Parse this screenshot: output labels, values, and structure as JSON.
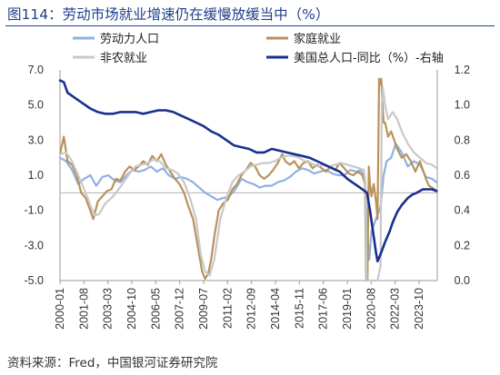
{
  "title": "图114：劳动市场就业增速仍在缓慢放缓当中（%）",
  "source": "资料来源：Fred，中国银河证券研究院",
  "chart_data": {
    "type": "line",
    "left_axis": {
      "ylim": [
        -5.0,
        7.0
      ],
      "ticks": [
        "7.0",
        "5.0",
        "3.0",
        "1.0",
        "-1.0",
        "-3.0",
        "-5.0"
      ]
    },
    "right_axis": {
      "ylim": [
        0.0,
        1.2
      ],
      "ticks": [
        "1.2",
        "1.0",
        "0.8",
        "0.6",
        "0.4",
        "0.2",
        "0.0"
      ]
    },
    "x_ticks": [
      "2000-01",
      "2001-08",
      "2003-03",
      "2004-10",
      "2006-05",
      "2007-12",
      "2009-07",
      "2011-02",
      "2012-09",
      "2014-04",
      "2015-11",
      "2017-06",
      "2019-01",
      "2020-08",
      "2022-03",
      "2023-10"
    ],
    "x_range": [
      2000.0,
      2024.95
    ],
    "legend": [
      {
        "label": "劳动力人口",
        "color": "#8fb0e2"
      },
      {
        "label": "家庭就业",
        "color": "#b8925a"
      },
      {
        "label": "非农就业",
        "color": "#c8c8c8"
      },
      {
        "label": "美国总人口-同比（%）-右轴",
        "color": "#1a2f8f"
      }
    ],
    "series": [
      {
        "name": "劳动力人口",
        "axis": "left",
        "color": "#8fb0e2",
        "x": [
          2000.0,
          2000.4,
          2000.8,
          2001.2,
          2001.6,
          2002.0,
          2002.4,
          2002.8,
          2003.2,
          2003.6,
          2004.0,
          2004.4,
          2004.8,
          2005.2,
          2005.6,
          2006.0,
          2006.4,
          2006.8,
          2007.2,
          2007.6,
          2008.0,
          2008.4,
          2008.8,
          2009.2,
          2009.6,
          2010.0,
          2010.4,
          2010.8,
          2011.2,
          2011.6,
          2012.0,
          2012.4,
          2012.8,
          2013.2,
          2013.6,
          2014.0,
          2014.4,
          2014.8,
          2015.2,
          2015.6,
          2016.0,
          2016.4,
          2016.8,
          2017.2,
          2017.6,
          2018.0,
          2018.4,
          2018.8,
          2019.2,
          2019.6,
          2019.9,
          2020.17,
          2020.3,
          2020.45,
          2020.6,
          2020.9,
          2021.2,
          2021.4,
          2021.6,
          2021.9,
          2022.2,
          2022.6,
          2023.0,
          2023.4,
          2023.8,
          2024.2,
          2024.6,
          2024.9
        ],
        "y": [
          2.0,
          1.8,
          1.3,
          0.5,
          0.8,
          1.0,
          0.4,
          0.9,
          1.0,
          0.7,
          0.6,
          1.0,
          1.3,
          1.2,
          1.3,
          1.5,
          1.2,
          1.4,
          1.0,
          0.8,
          0.9,
          0.8,
          0.6,
          0.3,
          0.0,
          -0.2,
          -0.4,
          -0.3,
          -0.2,
          0.2,
          0.8,
          0.6,
          0.5,
          0.3,
          0.4,
          0.4,
          0.6,
          0.7,
          0.9,
          1.2,
          1.4,
          1.3,
          1.1,
          1.2,
          1.3,
          1.1,
          1.0,
          1.0,
          1.3,
          1.2,
          1.3,
          0.8,
          -2.0,
          -3.8,
          -2.2,
          -1.5,
          -0.8,
          1.0,
          1.8,
          2.0,
          2.8,
          2.3,
          1.5,
          1.8,
          1.6,
          0.9,
          0.8,
          0.6
        ]
      },
      {
        "name": "家庭就业",
        "axis": "left",
        "color": "#b8925a",
        "x": [
          2000.0,
          2000.25,
          2000.5,
          2000.8,
          2001.1,
          2001.4,
          2001.7,
          2002.0,
          2002.2,
          2002.5,
          2002.8,
          2003.1,
          2003.4,
          2003.7,
          2004.0,
          2004.3,
          2004.6,
          2004.9,
          2005.2,
          2005.5,
          2005.8,
          2006.1,
          2006.4,
          2006.7,
          2007.0,
          2007.3,
          2007.6,
          2007.9,
          2008.2,
          2008.5,
          2008.8,
          2009.0,
          2009.2,
          2009.4,
          2009.6,
          2009.8,
          2010.0,
          2010.2,
          2010.5,
          2010.8,
          2011.1,
          2011.4,
          2011.7,
          2012.0,
          2012.3,
          2012.6,
          2012.9,
          2013.2,
          2013.5,
          2013.8,
          2014.1,
          2014.4,
          2014.7,
          2014.9,
          2015.2,
          2015.5,
          2015.8,
          2016.1,
          2016.4,
          2016.7,
          2017.0,
          2017.3,
          2017.6,
          2017.9,
          2018.2,
          2018.5,
          2018.8,
          2019.1,
          2019.4,
          2019.7,
          2020.0,
          2020.17,
          2020.25,
          2020.33,
          2020.42,
          2020.5,
          2020.6,
          2020.75,
          2020.9,
          2021.0,
          2021.1,
          2021.2,
          2021.25,
          2021.3,
          2021.4,
          2021.5,
          2021.7,
          2021.9,
          2022.1,
          2022.3,
          2022.6,
          2022.9,
          2023.2,
          2023.5,
          2023.8,
          2024.0,
          2024.2,
          2024.4,
          2024.6,
          2024.9
        ],
        "y": [
          2.2,
          3.2,
          1.8,
          1.6,
          1.0,
          0.0,
          -0.3,
          -1.0,
          -1.5,
          -0.5,
          -0.2,
          0.1,
          0.2,
          0.8,
          0.7,
          1.2,
          1.5,
          1.3,
          1.5,
          1.8,
          1.6,
          2.1,
          1.8,
          2.2,
          1.6,
          1.2,
          0.8,
          0.5,
          0.0,
          -0.8,
          -1.5,
          -2.5,
          -3.5,
          -4.5,
          -4.9,
          -4.6,
          -3.8,
          -2.5,
          -1.0,
          -0.6,
          -0.4,
          0.2,
          0.5,
          1.0,
          1.3,
          1.7,
          1.5,
          1.0,
          0.8,
          1.0,
          1.3,
          1.7,
          2.2,
          1.8,
          1.6,
          1.8,
          1.4,
          1.7,
          1.8,
          1.4,
          1.6,
          1.4,
          1.2,
          1.5,
          1.3,
          1.7,
          1.4,
          1.1,
          1.0,
          1.2,
          1.0,
          0.5,
          -5.0,
          -5.0,
          1.5,
          0.5,
          -0.2,
          0.5,
          -0.5,
          -1.5,
          6.5,
          6.2,
          6.5,
          5.5,
          4.0,
          4.0,
          3.2,
          3.5,
          3.0,
          2.5,
          2.0,
          2.2,
          1.8,
          1.2,
          1.8,
          1.3,
          0.8,
          0.4,
          0.3,
          0.1
        ]
      },
      {
        "name": "非农就业",
        "axis": "left",
        "color": "#c8c8c8",
        "x": [
          2000.0,
          2000.4,
          2000.8,
          2001.2,
          2001.6,
          2002.0,
          2002.3,
          2002.6,
          2003.0,
          2003.4,
          2003.8,
          2004.2,
          2004.6,
          2005.0,
          2005.4,
          2005.8,
          2006.2,
          2006.6,
          2007.0,
          2007.4,
          2007.8,
          2008.2,
          2008.6,
          2009.0,
          2009.3,
          2009.6,
          2009.9,
          2010.2,
          2010.6,
          2011.0,
          2011.4,
          2011.8,
          2012.2,
          2012.6,
          2013.0,
          2013.4,
          2013.8,
          2014.2,
          2014.6,
          2015.0,
          2015.4,
          2015.8,
          2016.2,
          2016.6,
          2017.0,
          2017.4,
          2017.8,
          2018.2,
          2018.6,
          2019.0,
          2019.4,
          2019.8,
          2020.1,
          2020.2,
          2020.28,
          2020.33,
          2020.45,
          2020.6,
          2020.8,
          2021.0,
          2021.2,
          2021.28,
          2021.35,
          2021.5,
          2021.7,
          2022.0,
          2022.3,
          2022.6,
          2023.0,
          2023.4,
          2023.8,
          2024.2,
          2024.6,
          2024.9
        ],
        "y": [
          2.2,
          2.3,
          1.8,
          1.0,
          0.2,
          -0.7,
          -1.3,
          -1.2,
          -0.6,
          -0.3,
          0.1,
          0.6,
          1.1,
          1.5,
          1.6,
          1.7,
          1.9,
          1.8,
          1.4,
          1.3,
          1.1,
          0.6,
          -0.3,
          -1.5,
          -3.5,
          -4.5,
          -4.7,
          -3.8,
          -1.5,
          -0.3,
          0.6,
          1.0,
          1.2,
          1.5,
          1.6,
          1.7,
          1.7,
          1.8,
          2.0,
          2.1,
          2.1,
          2.0,
          1.8,
          1.7,
          1.5,
          1.6,
          1.5,
          1.6,
          1.7,
          1.6,
          1.5,
          1.4,
          1.3,
          0.5,
          -5.0,
          -5.0,
          -5.0,
          -6.0,
          -6.0,
          -5.5,
          -4.2,
          5.0,
          6.0,
          5.0,
          4.2,
          4.6,
          4.2,
          3.5,
          2.8,
          2.3,
          2.0,
          1.7,
          1.6,
          1.4
        ]
      },
      {
        "name": "美国总人口-同比（%）-右轴",
        "axis": "right",
        "color": "#1a2f8f",
        "x": [
          2000.0,
          2000.25,
          2000.5,
          2001.0,
          2001.5,
          2002.0,
          2002.5,
          2003.0,
          2003.5,
          2004.0,
          2004.5,
          2005.0,
          2005.5,
          2006.0,
          2006.5,
          2007.0,
          2007.5,
          2008.0,
          2008.5,
          2009.0,
          2009.5,
          2010.0,
          2010.5,
          2011.0,
          2011.5,
          2012.0,
          2012.5,
          2013.0,
          2013.5,
          2014.0,
          2014.5,
          2015.0,
          2015.5,
          2016.0,
          2016.5,
          2017.0,
          2017.5,
          2018.0,
          2018.5,
          2019.0,
          2019.5,
          2020.0,
          2020.3,
          2020.5,
          2020.7,
          2020.9,
          2021.0,
          2021.2,
          2021.5,
          2021.8,
          2022.0,
          2022.3,
          2022.6,
          2023.0,
          2023.3,
          2023.6,
          2024.0,
          2024.3,
          2024.6,
          2024.9
        ],
        "y": [
          1.14,
          1.13,
          1.07,
          1.04,
          1.01,
          0.98,
          0.96,
          0.95,
          0.95,
          0.96,
          0.96,
          0.96,
          0.95,
          0.96,
          0.97,
          0.97,
          0.96,
          0.94,
          0.92,
          0.9,
          0.88,
          0.85,
          0.83,
          0.8,
          0.77,
          0.76,
          0.75,
          0.73,
          0.73,
          0.75,
          0.74,
          0.73,
          0.72,
          0.71,
          0.7,
          0.68,
          0.66,
          0.64,
          0.62,
          0.58,
          0.55,
          0.52,
          0.5,
          0.4,
          0.28,
          0.16,
          0.11,
          0.15,
          0.22,
          0.28,
          0.33,
          0.39,
          0.43,
          0.47,
          0.49,
          0.5,
          0.52,
          0.52,
          0.52,
          0.51
        ]
      }
    ]
  }
}
